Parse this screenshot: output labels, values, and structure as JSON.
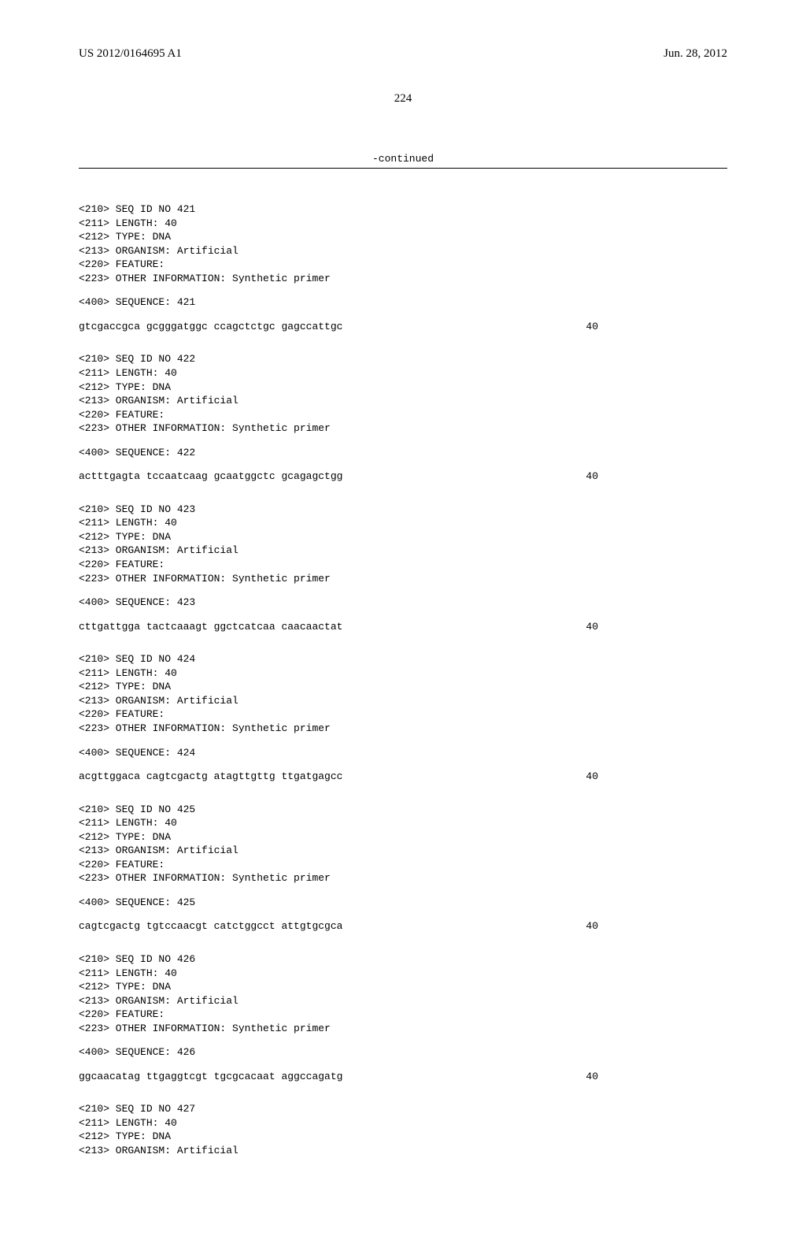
{
  "header": {
    "publication_number": "US 2012/0164695 A1",
    "publication_date": "Jun. 28, 2012"
  },
  "page_number": "224",
  "continued_label": "-continued",
  "sequences": [
    {
      "seq_id": "<210> SEQ ID NO 421",
      "length": "<211> LENGTH: 40",
      "type": "<212> TYPE: DNA",
      "organism": "<213> ORGANISM: Artificial",
      "feature": "<220> FEATURE:",
      "other_info": "<223> OTHER INFORMATION: Synthetic primer",
      "seq_line": "<400> SEQUENCE: 421",
      "sequence": "gtcgaccgca gcgggatggc ccagctctgc gagccattgc",
      "seq_len": "40"
    },
    {
      "seq_id": "<210> SEQ ID NO 422",
      "length": "<211> LENGTH: 40",
      "type": "<212> TYPE: DNA",
      "organism": "<213> ORGANISM: Artificial",
      "feature": "<220> FEATURE:",
      "other_info": "<223> OTHER INFORMATION: Synthetic primer",
      "seq_line": "<400> SEQUENCE: 422",
      "sequence": "actttgagta tccaatcaag gcaatggctc gcagagctgg",
      "seq_len": "40"
    },
    {
      "seq_id": "<210> SEQ ID NO 423",
      "length": "<211> LENGTH: 40",
      "type": "<212> TYPE: DNA",
      "organism": "<213> ORGANISM: Artificial",
      "feature": "<220> FEATURE:",
      "other_info": "<223> OTHER INFORMATION: Synthetic primer",
      "seq_line": "<400> SEQUENCE: 423",
      "sequence": "cttgattgga tactcaaagt ggctcatcaa caacaactat",
      "seq_len": "40"
    },
    {
      "seq_id": "<210> SEQ ID NO 424",
      "length": "<211> LENGTH: 40",
      "type": "<212> TYPE: DNA",
      "organism": "<213> ORGANISM: Artificial",
      "feature": "<220> FEATURE:",
      "other_info": "<223> OTHER INFORMATION: Synthetic primer",
      "seq_line": "<400> SEQUENCE: 424",
      "sequence": "acgttggaca cagtcgactg atagttgttg ttgatgagcc",
      "seq_len": "40"
    },
    {
      "seq_id": "<210> SEQ ID NO 425",
      "length": "<211> LENGTH: 40",
      "type": "<212> TYPE: DNA",
      "organism": "<213> ORGANISM: Artificial",
      "feature": "<220> FEATURE:",
      "other_info": "<223> OTHER INFORMATION: Synthetic primer",
      "seq_line": "<400> SEQUENCE: 425",
      "sequence": "cagtcgactg tgtccaacgt catctggcct attgtgcgca",
      "seq_len": "40"
    },
    {
      "seq_id": "<210> SEQ ID NO 426",
      "length": "<211> LENGTH: 40",
      "type": "<212> TYPE: DNA",
      "organism": "<213> ORGANISM: Artificial",
      "feature": "<220> FEATURE:",
      "other_info": "<223> OTHER INFORMATION: Synthetic primer",
      "seq_line": "<400> SEQUENCE: 426",
      "sequence": "ggcaacatag ttgaggtcgt tgcgcacaat aggccagatg",
      "seq_len": "40"
    },
    {
      "seq_id": "<210> SEQ ID NO 427",
      "length": "<211> LENGTH: 40",
      "type": "<212> TYPE: DNA",
      "organism": "<213> ORGANISM: Artificial",
      "feature": "",
      "other_info": "",
      "seq_line": "",
      "sequence": "",
      "seq_len": ""
    }
  ]
}
